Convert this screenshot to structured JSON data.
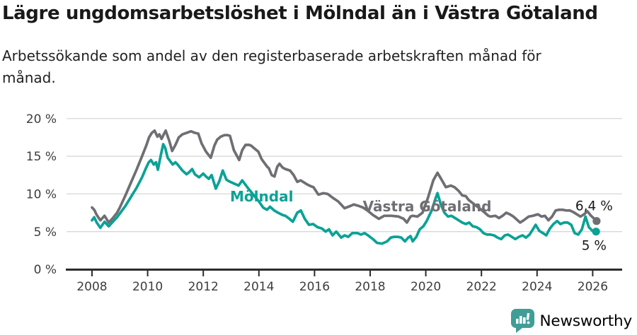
{
  "header": {},
  "footer": {
    "brand": "Newsworthy",
    "brand_color": "#3f9e96"
  },
  "chart_data": {
    "type": "line",
    "title": "Lägre ungdomsarbetslöshet i Mölndal än i Västra Götaland",
    "subtitle": "Arbetssökande som andel av den registerbaserade arbetskraften månad för månad.",
    "unit": "%",
    "grid": "horizontal-only",
    "legend_position": "inline-labels",
    "x_axis": {
      "range": [
        2008,
        2026.3
      ],
      "ticks": [
        {
          "value": 2008,
          "label": "2008"
        },
        {
          "value": 2010,
          "label": "2010"
        },
        {
          "value": 2012,
          "label": "2012"
        },
        {
          "value": 2014,
          "label": "2014"
        },
        {
          "value": 2016,
          "label": "2016"
        },
        {
          "value": 2018,
          "label": "2018"
        },
        {
          "value": 2020,
          "label": "2020"
        },
        {
          "value": 2022,
          "label": "2022"
        },
        {
          "value": 2024,
          "label": "2024"
        },
        {
          "value": 2026,
          "label": "2026"
        }
      ]
    },
    "y_axis": {
      "range": [
        0,
        21
      ],
      "ticks": [
        {
          "value": 0,
          "label": "0 %"
        },
        {
          "value": 5,
          "label": "5 %"
        },
        {
          "value": 10,
          "label": "10 %"
        },
        {
          "value": 15,
          "label": "15 %"
        },
        {
          "value": 20,
          "label": "20 %"
        }
      ]
    },
    "series": [
      {
        "name": "Västra Götaland",
        "color": "#6e6e73",
        "end_label": "6,4 %",
        "end_value": 6.4,
        "label_at": [
          2014.1,
          8.35
        ],
        "label_anchor_x": 2020.05,
        "end_label_at": [
          2026.05,
          8.45
        ],
        "points": [
          [
            2008.0,
            8.2
          ],
          [
            2008.08,
            7.9
          ],
          [
            2008.17,
            7.2
          ],
          [
            2008.3,
            6.5
          ],
          [
            2008.45,
            7.1
          ],
          [
            2008.6,
            6.2
          ],
          [
            2008.75,
            6.8
          ],
          [
            2008.9,
            7.5
          ],
          [
            2009.0,
            8.2
          ],
          [
            2009.2,
            9.8
          ],
          [
            2009.4,
            11.5
          ],
          [
            2009.6,
            13.2
          ],
          [
            2009.8,
            15.0
          ],
          [
            2009.95,
            16.4
          ],
          [
            2010.05,
            17.5
          ],
          [
            2010.15,
            18.1
          ],
          [
            2010.25,
            18.4
          ],
          [
            2010.35,
            17.6
          ],
          [
            2010.42,
            17.9
          ],
          [
            2010.5,
            17.3
          ],
          [
            2010.58,
            17.9
          ],
          [
            2010.65,
            18.4
          ],
          [
            2010.78,
            17.0
          ],
          [
            2010.88,
            15.7
          ],
          [
            2011.0,
            16.5
          ],
          [
            2011.12,
            17.5
          ],
          [
            2011.25,
            17.9
          ],
          [
            2011.4,
            18.1
          ],
          [
            2011.56,
            18.3
          ],
          [
            2011.7,
            18.1
          ],
          [
            2011.82,
            18.0
          ],
          [
            2011.94,
            16.7
          ],
          [
            2012.1,
            15.6
          ],
          [
            2012.27,
            14.8
          ],
          [
            2012.4,
            16.4
          ],
          [
            2012.5,
            17.2
          ],
          [
            2012.63,
            17.6
          ],
          [
            2012.76,
            17.8
          ],
          [
            2012.88,
            17.8
          ],
          [
            2012.96,
            17.7
          ],
          [
            2013.1,
            15.8
          ],
          [
            2013.29,
            14.5
          ],
          [
            2013.4,
            15.8
          ],
          [
            2013.52,
            16.5
          ],
          [
            2013.65,
            16.5
          ],
          [
            2013.72,
            16.4
          ],
          [
            2013.85,
            16.0
          ],
          [
            2013.98,
            15.6
          ],
          [
            2014.1,
            14.6
          ],
          [
            2014.18,
            14.2
          ],
          [
            2014.3,
            13.6
          ],
          [
            2014.36,
            13.4
          ],
          [
            2014.46,
            12.5
          ],
          [
            2014.56,
            12.3
          ],
          [
            2014.66,
            13.6
          ],
          [
            2014.74,
            14.0
          ],
          [
            2014.85,
            13.5
          ],
          [
            2014.95,
            13.3
          ],
          [
            2015.12,
            13.1
          ],
          [
            2015.25,
            12.5
          ],
          [
            2015.38,
            11.6
          ],
          [
            2015.5,
            11.8
          ],
          [
            2015.63,
            11.5
          ],
          [
            2015.76,
            11.2
          ],
          [
            2015.88,
            11.0
          ],
          [
            2015.96,
            10.9
          ],
          [
            2016.14,
            9.9
          ],
          [
            2016.32,
            10.1
          ],
          [
            2016.47,
            10.0
          ],
          [
            2016.65,
            9.5
          ],
          [
            2016.85,
            9.0
          ],
          [
            2017.08,
            8.1
          ],
          [
            2017.29,
            8.4
          ],
          [
            2017.41,
            8.6
          ],
          [
            2017.59,
            8.4
          ],
          [
            2017.74,
            8.2
          ],
          [
            2017.9,
            7.8
          ],
          [
            2018.1,
            7.2
          ],
          [
            2018.31,
            6.7
          ],
          [
            2018.51,
            7.1
          ],
          [
            2018.76,
            7.1
          ],
          [
            2019.02,
            7.0
          ],
          [
            2019.2,
            6.7
          ],
          [
            2019.32,
            6.2
          ],
          [
            2019.45,
            7.0
          ],
          [
            2019.53,
            7.1
          ],
          [
            2019.7,
            7.0
          ],
          [
            2019.88,
            7.5
          ],
          [
            2020.08,
            9.5
          ],
          [
            2020.27,
            11.8
          ],
          [
            2020.42,
            12.8
          ],
          [
            2020.55,
            12.0
          ],
          [
            2020.72,
            10.9
          ],
          [
            2020.9,
            11.1
          ],
          [
            2021.03,
            10.9
          ],
          [
            2021.18,
            10.4
          ],
          [
            2021.31,
            9.8
          ],
          [
            2021.44,
            9.7
          ],
          [
            2021.54,
            9.2
          ],
          [
            2021.75,
            8.6
          ],
          [
            2022.0,
            7.9
          ],
          [
            2022.25,
            7.1
          ],
          [
            2022.32,
            7.0
          ],
          [
            2022.5,
            7.1
          ],
          [
            2022.63,
            6.8
          ],
          [
            2022.76,
            7.1
          ],
          [
            2022.89,
            7.5
          ],
          [
            2023.02,
            7.3
          ],
          [
            2023.15,
            7.0
          ],
          [
            2023.27,
            6.6
          ],
          [
            2023.39,
            6.2
          ],
          [
            2023.52,
            6.5
          ],
          [
            2023.7,
            7.0
          ],
          [
            2023.85,
            7.1
          ],
          [
            2024.03,
            7.3
          ],
          [
            2024.16,
            7.0
          ],
          [
            2024.28,
            7.1
          ],
          [
            2024.41,
            6.5
          ],
          [
            2024.54,
            7.0
          ],
          [
            2024.67,
            7.8
          ],
          [
            2024.79,
            7.9
          ],
          [
            2024.92,
            7.9
          ],
          [
            2025.05,
            7.8
          ],
          [
            2025.18,
            7.8
          ],
          [
            2025.3,
            7.6
          ],
          [
            2025.43,
            7.3
          ],
          [
            2025.56,
            7.0
          ],
          [
            2025.69,
            7.3
          ],
          [
            2025.81,
            7.7
          ],
          [
            2025.94,
            7.1
          ],
          [
            2026.06,
            6.7
          ],
          [
            2026.14,
            6.4
          ]
        ]
      },
      {
        "name": "Mölndal",
        "color": "#0aa296",
        "end_label": "5 %",
        "end_value": 5.0,
        "label_at": [
          2014.1,
          9.66
        ],
        "label_anchor_x": 2014.1,
        "end_label_at": [
          2026.05,
          3.2
        ],
        "points": [
          [
            2008.0,
            6.5
          ],
          [
            2008.08,
            6.9
          ],
          [
            2008.17,
            6.2
          ],
          [
            2008.3,
            5.5
          ],
          [
            2008.45,
            6.3
          ],
          [
            2008.6,
            5.7
          ],
          [
            2008.75,
            6.3
          ],
          [
            2008.9,
            6.9
          ],
          [
            2009.0,
            7.4
          ],
          [
            2009.2,
            8.4
          ],
          [
            2009.4,
            9.6
          ],
          [
            2009.6,
            10.8
          ],
          [
            2009.8,
            12.2
          ],
          [
            2009.95,
            13.5
          ],
          [
            2010.04,
            14.2
          ],
          [
            2010.12,
            14.5
          ],
          [
            2010.22,
            13.9
          ],
          [
            2010.3,
            14.2
          ],
          [
            2010.37,
            13.2
          ],
          [
            2010.47,
            15.1
          ],
          [
            2010.56,
            16.6
          ],
          [
            2010.63,
            16.1
          ],
          [
            2010.72,
            14.8
          ],
          [
            2010.8,
            14.4
          ],
          [
            2010.9,
            13.9
          ],
          [
            2011.0,
            14.2
          ],
          [
            2011.1,
            13.8
          ],
          [
            2011.25,
            13.1
          ],
          [
            2011.4,
            12.6
          ],
          [
            2011.5,
            12.9
          ],
          [
            2011.6,
            13.3
          ],
          [
            2011.7,
            12.6
          ],
          [
            2011.85,
            12.2
          ],
          [
            2012.0,
            12.7
          ],
          [
            2012.1,
            12.3
          ],
          [
            2012.2,
            12.0
          ],
          [
            2012.3,
            12.5
          ],
          [
            2012.45,
            10.7
          ],
          [
            2012.58,
            11.7
          ],
          [
            2012.7,
            13.1
          ],
          [
            2012.83,
            11.9
          ],
          [
            2012.91,
            11.7
          ],
          [
            2013.09,
            11.4
          ],
          [
            2013.27,
            11.1
          ],
          [
            2013.4,
            11.8
          ],
          [
            2013.6,
            10.8
          ],
          [
            2013.8,
            9.9
          ],
          [
            2014.0,
            9.0
          ],
          [
            2014.15,
            8.2
          ],
          [
            2014.29,
            7.9
          ],
          [
            2014.4,
            8.3
          ],
          [
            2014.55,
            7.8
          ],
          [
            2014.69,
            7.5
          ],
          [
            2014.85,
            7.2
          ],
          [
            2014.95,
            7.1
          ],
          [
            2015.1,
            6.7
          ],
          [
            2015.22,
            6.3
          ],
          [
            2015.38,
            7.5
          ],
          [
            2015.51,
            7.8
          ],
          [
            2015.65,
            6.7
          ],
          [
            2015.8,
            5.9
          ],
          [
            2015.95,
            6.0
          ],
          [
            2016.1,
            5.6
          ],
          [
            2016.27,
            5.4
          ],
          [
            2016.4,
            5.0
          ],
          [
            2016.52,
            5.3
          ],
          [
            2016.65,
            4.5
          ],
          [
            2016.78,
            5.0
          ],
          [
            2016.96,
            4.2
          ],
          [
            2017.08,
            4.5
          ],
          [
            2017.21,
            4.3
          ],
          [
            2017.36,
            4.8
          ],
          [
            2017.54,
            4.8
          ],
          [
            2017.67,
            4.6
          ],
          [
            2017.8,
            4.8
          ],
          [
            2017.92,
            4.5
          ],
          [
            2018.1,
            4.0
          ],
          [
            2018.25,
            3.5
          ],
          [
            2018.43,
            3.4
          ],
          [
            2018.61,
            3.7
          ],
          [
            2018.74,
            4.2
          ],
          [
            2018.86,
            4.3
          ],
          [
            2018.99,
            4.3
          ],
          [
            2019.12,
            4.2
          ],
          [
            2019.25,
            3.7
          ],
          [
            2019.37,
            4.2
          ],
          [
            2019.45,
            4.4
          ],
          [
            2019.53,
            3.7
          ],
          [
            2019.66,
            4.3
          ],
          [
            2019.78,
            5.3
          ],
          [
            2019.91,
            5.7
          ],
          [
            2020.03,
            6.4
          ],
          [
            2020.21,
            7.8
          ],
          [
            2020.35,
            9.4
          ],
          [
            2020.42,
            10.1
          ],
          [
            2020.54,
            8.6
          ],
          [
            2020.67,
            7.5
          ],
          [
            2020.8,
            7.0
          ],
          [
            2020.92,
            7.1
          ],
          [
            2021.05,
            6.8
          ],
          [
            2021.18,
            6.5
          ],
          [
            2021.31,
            6.2
          ],
          [
            2021.44,
            6.0
          ],
          [
            2021.56,
            6.2
          ],
          [
            2021.69,
            5.7
          ],
          [
            2021.82,
            5.6
          ],
          [
            2021.95,
            5.3
          ],
          [
            2022.07,
            4.8
          ],
          [
            2022.2,
            4.6
          ],
          [
            2022.32,
            4.6
          ],
          [
            2022.45,
            4.5
          ],
          [
            2022.58,
            4.2
          ],
          [
            2022.71,
            4.0
          ],
          [
            2022.84,
            4.5
          ],
          [
            2022.96,
            4.6
          ],
          [
            2023.09,
            4.3
          ],
          [
            2023.22,
            4.0
          ],
          [
            2023.35,
            4.3
          ],
          [
            2023.48,
            4.5
          ],
          [
            2023.6,
            4.2
          ],
          [
            2023.73,
            4.6
          ],
          [
            2023.85,
            5.3
          ],
          [
            2023.95,
            5.9
          ],
          [
            2024.08,
            5.1
          ],
          [
            2024.21,
            4.8
          ],
          [
            2024.33,
            4.5
          ],
          [
            2024.46,
            5.4
          ],
          [
            2024.59,
            6.0
          ],
          [
            2024.72,
            6.4
          ],
          [
            2024.84,
            6.0
          ],
          [
            2024.97,
            6.2
          ],
          [
            2025.1,
            6.2
          ],
          [
            2025.23,
            5.9
          ],
          [
            2025.35,
            4.8
          ],
          [
            2025.48,
            4.6
          ],
          [
            2025.61,
            5.3
          ],
          [
            2025.74,
            7.0
          ],
          [
            2025.86,
            5.6
          ],
          [
            2025.99,
            5.1
          ],
          [
            2026.12,
            5.0
          ]
        ]
      }
    ]
  }
}
